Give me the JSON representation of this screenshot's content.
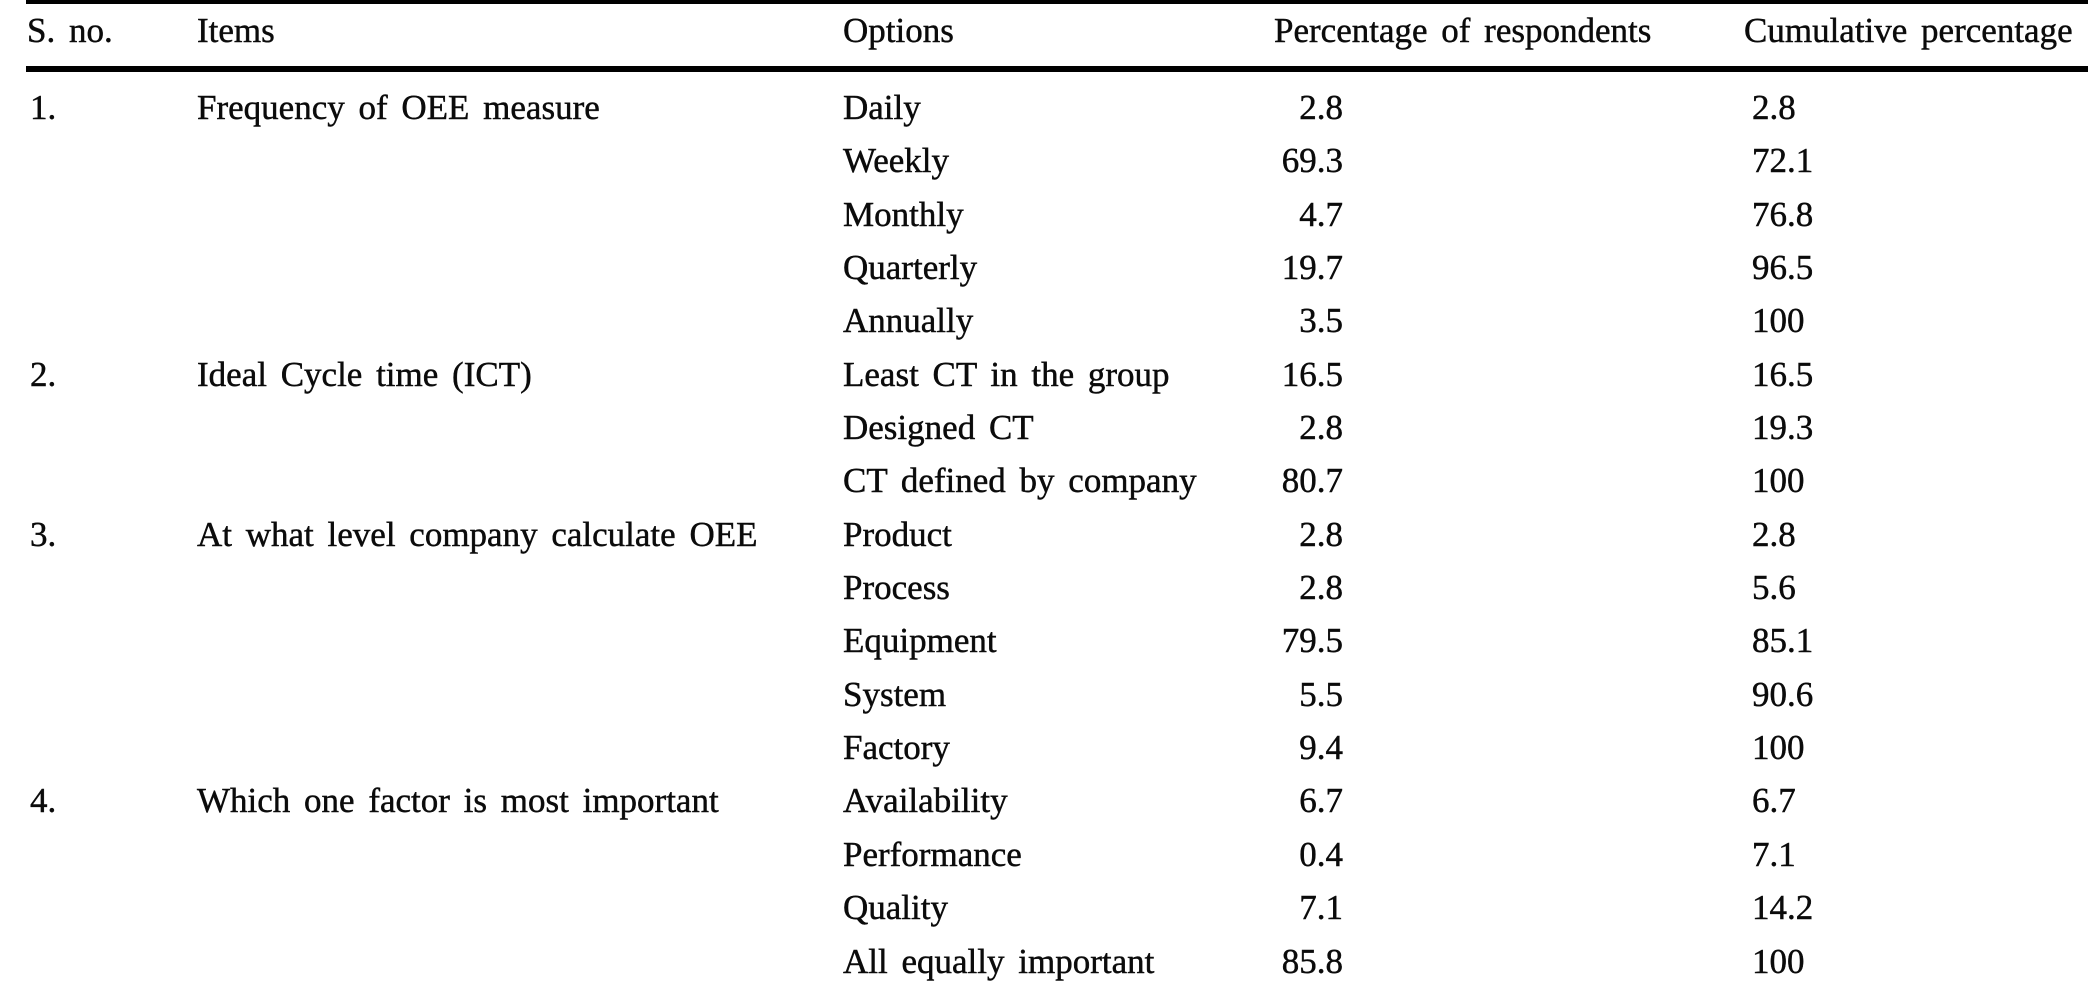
{
  "table": {
    "columns": {
      "sno": "S. no.",
      "items": "Items",
      "options": "Options",
      "percentage": "Percentage of respondents",
      "cumulative": "Cumulative percentage"
    },
    "groups": [
      {
        "sno": "1.",
        "item": "Frequency of OEE measure",
        "rows": [
          {
            "option": "Daily",
            "pct": "2.8",
            "cum": "2.8"
          },
          {
            "option": "Weekly",
            "pct": "69.3",
            "cum": "72.1"
          },
          {
            "option": "Monthly",
            "pct": "4.7",
            "cum": "76.8"
          },
          {
            "option": "Quarterly",
            "pct": "19.7",
            "cum": "96.5"
          },
          {
            "option": "Annually",
            "pct": "3.5",
            "cum": "100"
          }
        ]
      },
      {
        "sno": "2.",
        "item": "Ideal Cycle time (ICT)",
        "rows": [
          {
            "option": "Least CT in the group",
            "pct": "16.5",
            "cum": "16.5"
          },
          {
            "option": "Designed CT",
            "pct": "2.8",
            "cum": "19.3"
          },
          {
            "option": "CT defined by company",
            "pct": "80.7",
            "cum": "100"
          }
        ]
      },
      {
        "sno": "3.",
        "item": "At what level company calculate OEE",
        "rows": [
          {
            "option": "Product",
            "pct": "2.8",
            "cum": "2.8"
          },
          {
            "option": "Process",
            "pct": "2.8",
            "cum": "5.6"
          },
          {
            "option": "Equipment",
            "pct": "79.5",
            "cum": "85.1"
          },
          {
            "option": "System",
            "pct": "5.5",
            "cum": "90.6"
          },
          {
            "option": "Factory",
            "pct": "9.4",
            "cum": "100"
          }
        ]
      },
      {
        "sno": "4.",
        "item": "Which one factor is most important",
        "rows": [
          {
            "option": "Availability",
            "pct": "6.7",
            "cum": "6.7"
          },
          {
            "option": "Performance",
            "pct": "0.4",
            "cum": "7.1"
          },
          {
            "option": "Quality",
            "pct": "7.1",
            "cum": "14.2"
          },
          {
            "option": "All equally important",
            "pct": "85.8",
            "cum": "100"
          }
        ]
      }
    ],
    "colors": {
      "text": "#0b0b0b",
      "rule": "#000000",
      "background": "#ffffff"
    }
  }
}
